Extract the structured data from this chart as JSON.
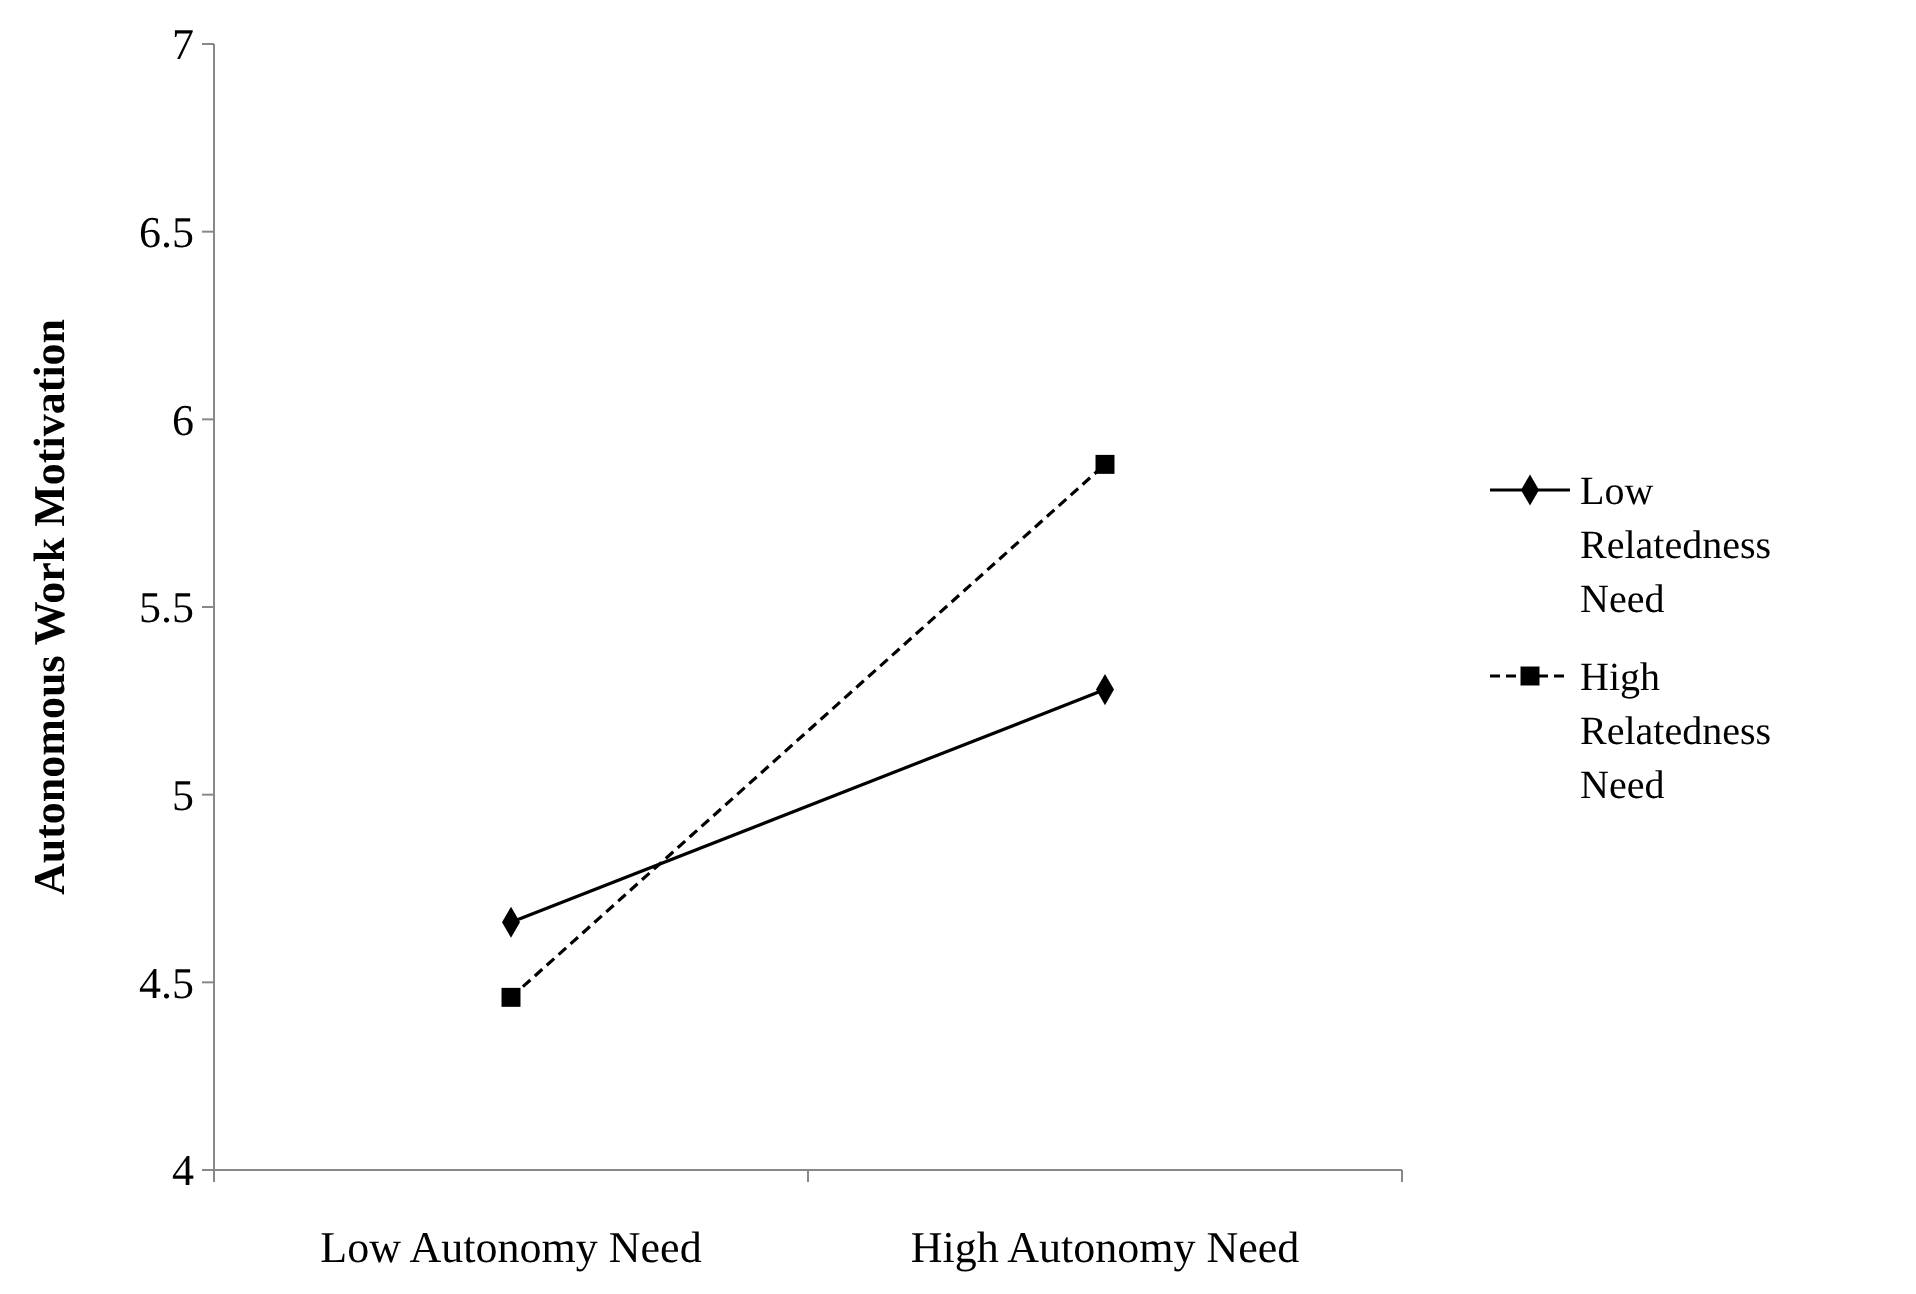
{
  "chart_data": {
    "type": "line",
    "ylabel": "Autonomous Work Motivation",
    "categories": [
      "Low Autonomy Need",
      "High Autonomy Need"
    ],
    "series": [
      {
        "name": "Low Relatedness Need",
        "color": "#000000",
        "values": [
          4.66,
          5.28
        ],
        "marker": "diamond",
        "line_style": "solid"
      },
      {
        "name": "High Relatedness Need",
        "color": "#000000",
        "values": [
          4.46,
          5.88
        ],
        "marker": "square",
        "line_style": "dashed"
      }
    ],
    "ylim": [
      4,
      7
    ],
    "yticks": [
      4,
      {
        "value": 4.5,
        "label": "4.5"
      },
      5,
      {
        "value": 5.5,
        "label": "5.5"
      },
      6,
      {
        "value": 6.5,
        "label": "6.5"
      },
      7
    ],
    "grid": false,
    "legend": "right"
  }
}
